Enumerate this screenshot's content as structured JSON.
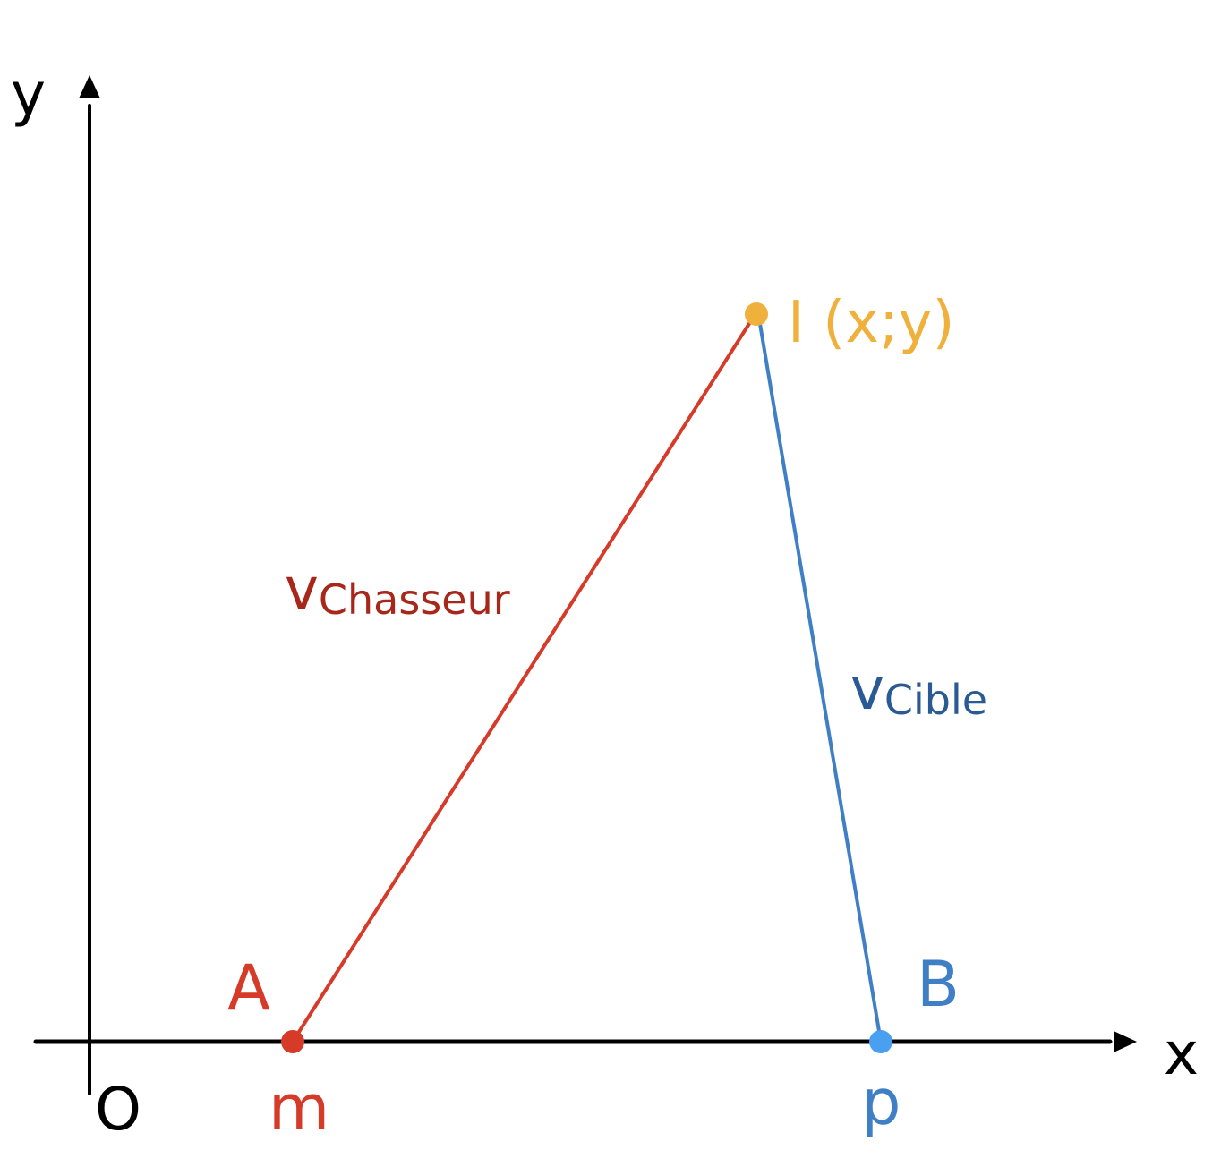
{
  "axes": {
    "x_label": "x",
    "y_label": "y",
    "origin_label": "O"
  },
  "points": {
    "A": {
      "name": "A",
      "coord": "m",
      "color": "#d63a28"
    },
    "B": {
      "name": "B",
      "coord": "p",
      "color": "#3f7fc5"
    },
    "I": {
      "label": "I (x;y)",
      "color": "#f0b03c"
    }
  },
  "speeds": {
    "hunter": {
      "v": "v",
      "sub": "Chasseur",
      "color": "#a8271b"
    },
    "target": {
      "v": "v",
      "sub": "Cible",
      "color": "#2a5a93"
    }
  },
  "colors": {
    "axis": "#000000",
    "segment_AI": "#d63a28",
    "segment_BI": "#3f7fc5",
    "point_B_fill": "#4aa0f0"
  }
}
